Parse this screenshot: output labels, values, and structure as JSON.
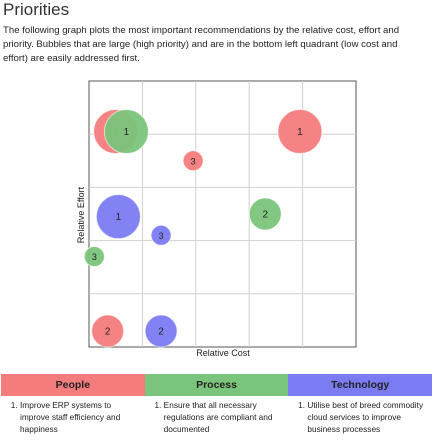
{
  "header": {
    "title": "Priorities",
    "description": "The following graph plots the most important recommendations by the relative cost, effort and priority. Bubbles that are large (high priority) and are in the bottom left quadrant (low cost and effort) are easily addressed first."
  },
  "chart_data": {
    "type": "scatter",
    "subtype": "bubble",
    "title": "",
    "xlabel": "Relative Cost",
    "ylabel": "Relative Effort",
    "xlim": [
      0,
      10
    ],
    "ylim": [
      0,
      10
    ],
    "grid": true,
    "series": [
      {
        "name": "People",
        "color": "#f47c7c",
        "points": [
          {
            "x": 1.0,
            "y": 8.1,
            "priority": 1
          },
          {
            "x": 7.9,
            "y": 8.1,
            "priority": 1
          },
          {
            "x": 0.7,
            "y": 0.6,
            "priority": 2
          },
          {
            "x": 3.9,
            "y": 7.0,
            "priority": 3
          }
        ]
      },
      {
        "name": "Process",
        "color": "#7bc47b",
        "points": [
          {
            "x": 1.4,
            "y": 8.1,
            "priority": 1
          },
          {
            "x": 6.6,
            "y": 5.0,
            "priority": 2
          },
          {
            "x": 0.2,
            "y": 3.4,
            "priority": 3
          }
        ]
      },
      {
        "name": "Technology",
        "color": "#7b7bf4",
        "points": [
          {
            "x": 1.1,
            "y": 4.9,
            "priority": 1
          },
          {
            "x": 2.7,
            "y": 0.6,
            "priority": 2
          },
          {
            "x": 2.7,
            "y": 4.2,
            "priority": 3
          }
        ]
      }
    ]
  },
  "categories": [
    {
      "name": "People",
      "color": "#f47c7c",
      "items": [
        "Improve ERP systems to improve staff efficiency and happiness"
      ]
    },
    {
      "name": "Process",
      "color": "#7bc47b",
      "items": [
        "Ensure that all necessary regulations are compliant and documented"
      ]
    },
    {
      "name": "Technology",
      "color": "#7b7bf4",
      "items": [
        "Utilise best of breed commodity cloud services to improve business processes"
      ]
    }
  ]
}
